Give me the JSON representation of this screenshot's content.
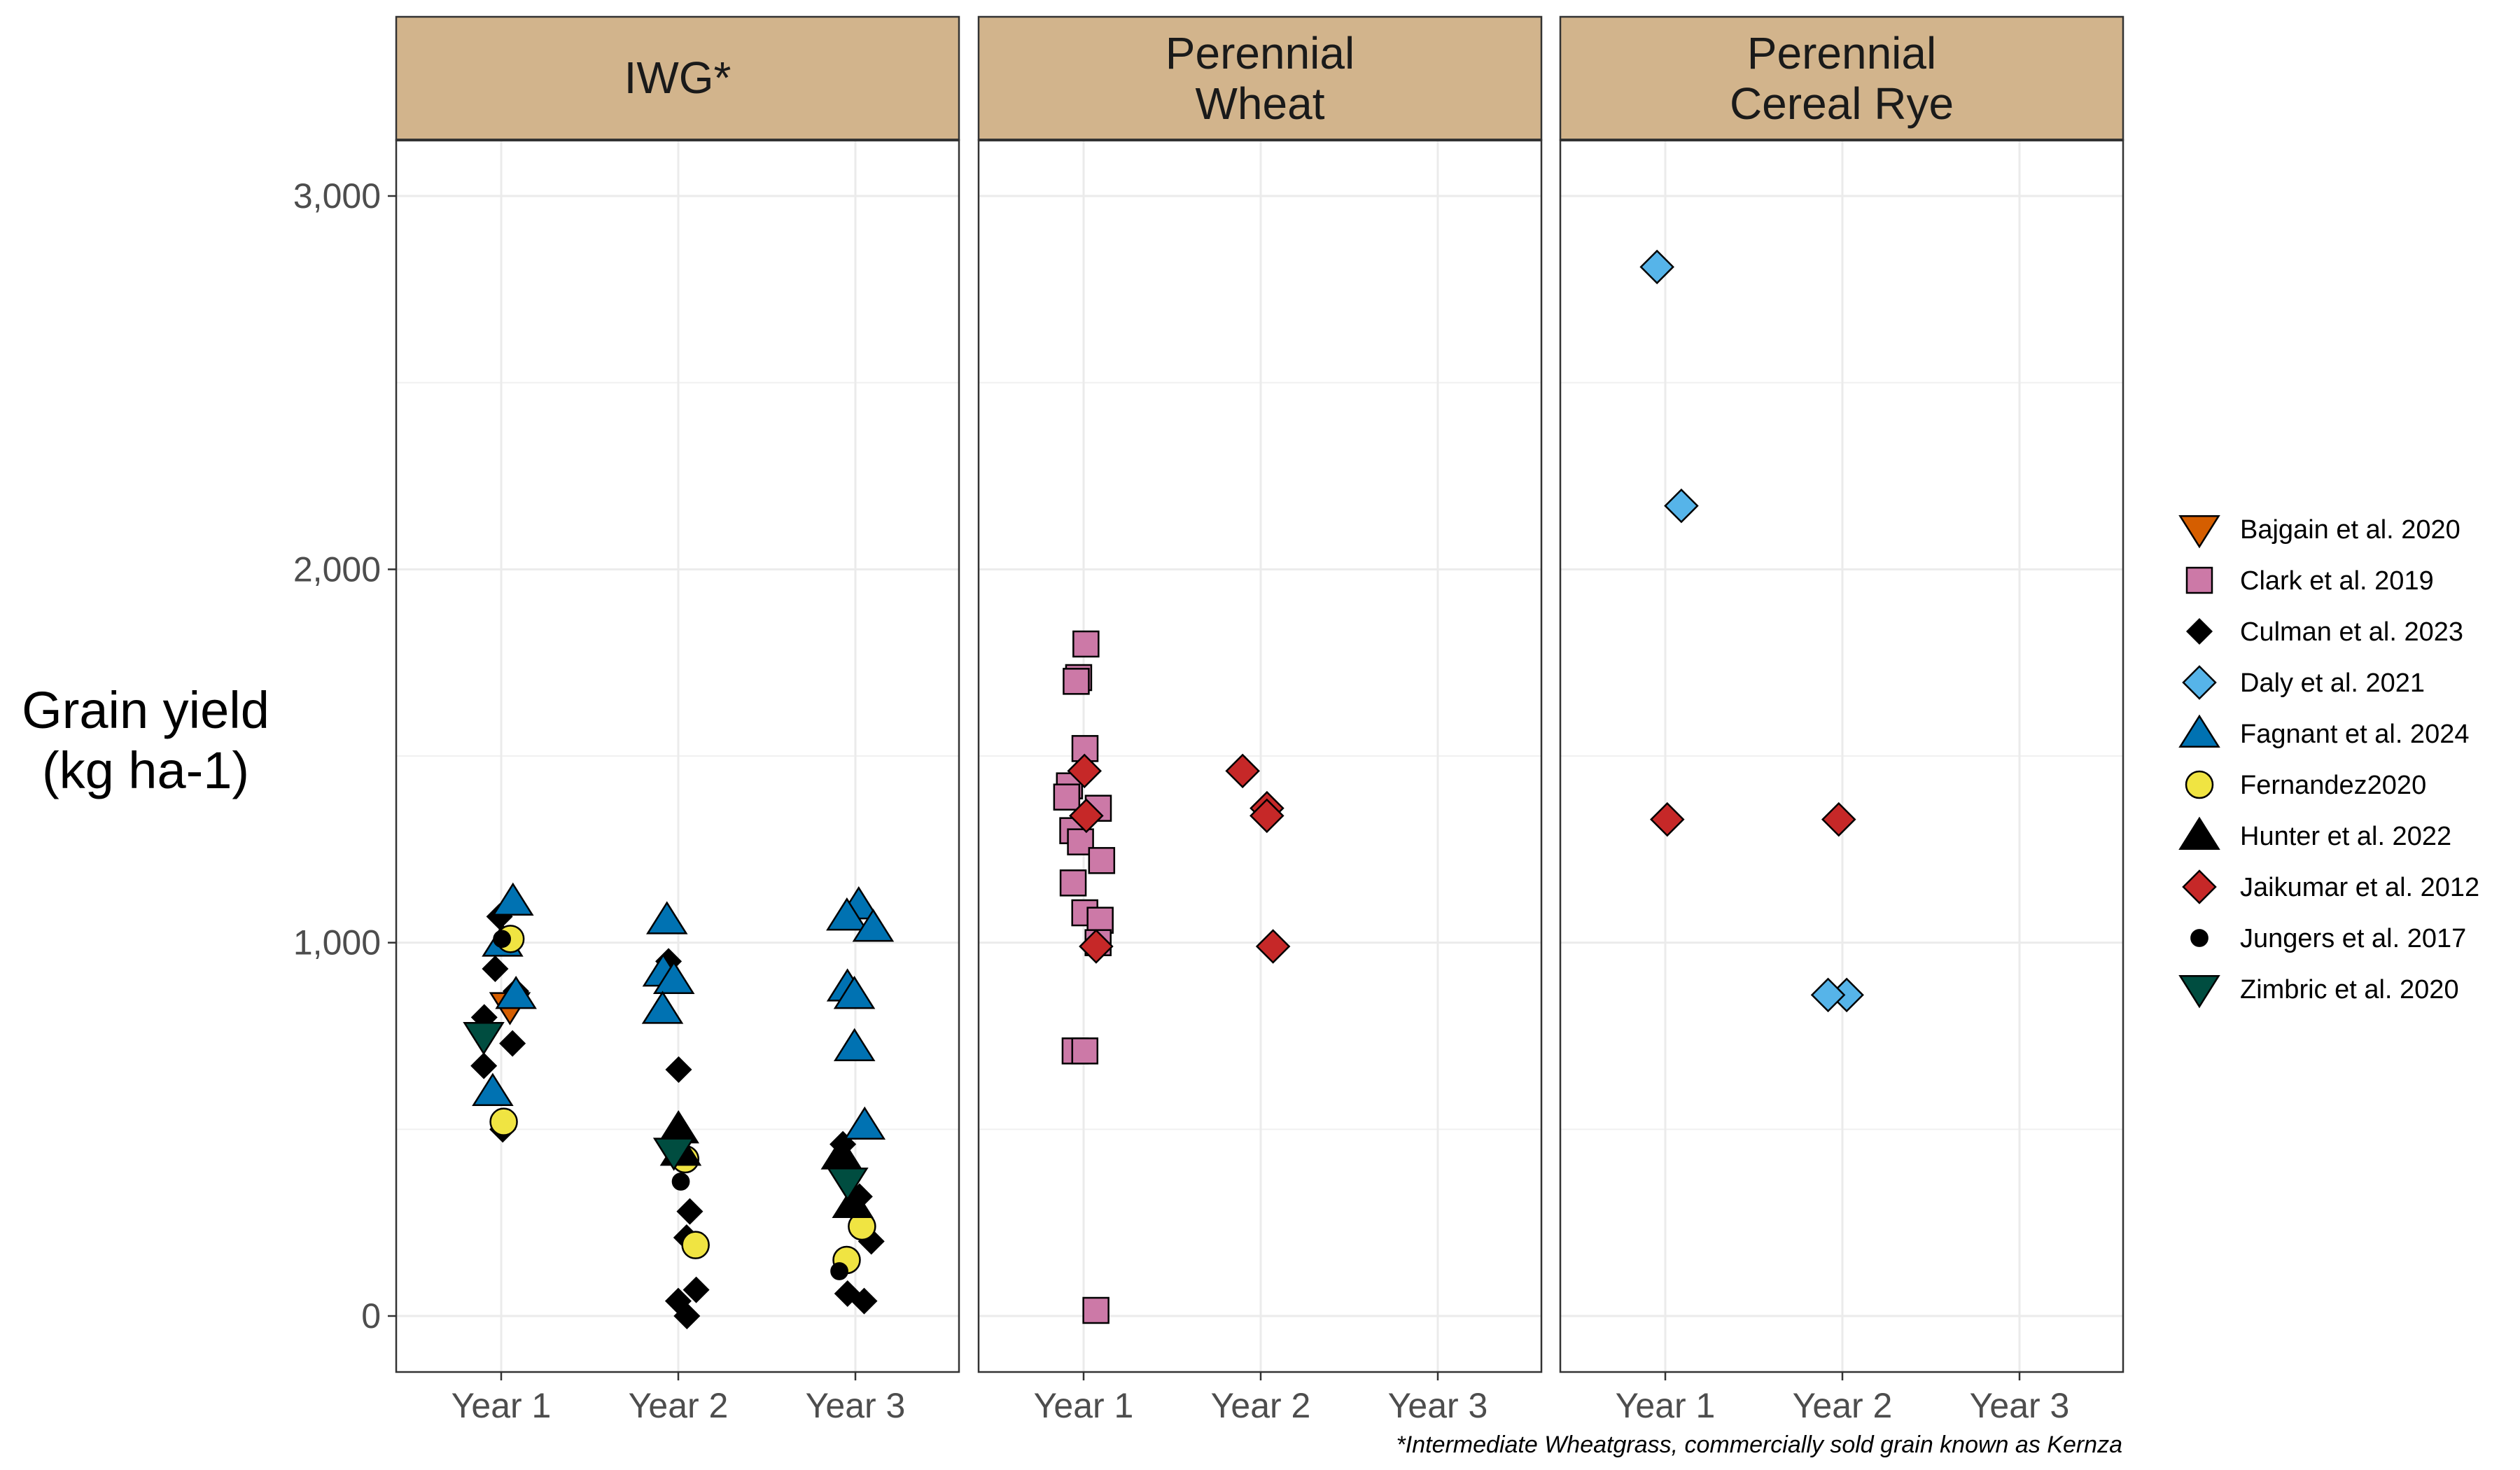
{
  "chart_data": {
    "type": "scatter",
    "ylabel_lines": [
      "Grain yield",
      "(kg ha-1)"
    ],
    "ylim": [
      -150,
      3150
    ],
    "yticks": [
      0,
      1000,
      2000,
      3000
    ],
    "ytick_labels": [
      "0",
      "1,000",
      "2,000",
      "3,000"
    ],
    "categories": [
      "Year 1",
      "Year 2",
      "Year 3"
    ],
    "grid": true,
    "legend_position": "right",
    "caption": "*Intermediate Wheatgrass, commercially sold grain known as Kernza",
    "panels": [
      {
        "lines": [
          "IWG*"
        ]
      },
      {
        "lines": [
          "Perennial",
          "Wheat"
        ]
      },
      {
        "lines": [
          "Perennial",
          "Cereal Rye"
        ]
      }
    ],
    "series": [
      {
        "name": "Bajgain et al. 2020",
        "shape": "triangle-down",
        "color": "#D55E00",
        "points": [
          {
            "panel": 0,
            "x": "Year 1",
            "y": 830
          }
        ]
      },
      {
        "name": "Clark et al. 2019",
        "shape": "square",
        "color": "#CC79A7",
        "points": [
          {
            "panel": 1,
            "x": "Year 1",
            "y": 1800
          },
          {
            "panel": 1,
            "x": "Year 1",
            "y": 1710
          },
          {
            "panel": 1,
            "x": "Year 1",
            "y": 1700
          },
          {
            "panel": 1,
            "x": "Year 1",
            "y": 1520
          },
          {
            "panel": 1,
            "x": "Year 1",
            "y": 1420
          },
          {
            "panel": 1,
            "x": "Year 1",
            "y": 1390
          },
          {
            "panel": 1,
            "x": "Year 1",
            "y": 1360
          },
          {
            "panel": 1,
            "x": "Year 1",
            "y": 1300
          },
          {
            "panel": 1,
            "x": "Year 1",
            "y": 1270
          },
          {
            "panel": 1,
            "x": "Year 1",
            "y": 1220
          },
          {
            "panel": 1,
            "x": "Year 1",
            "y": 1160
          },
          {
            "panel": 1,
            "x": "Year 1",
            "y": 1080
          },
          {
            "panel": 1,
            "x": "Year 1",
            "y": 1060
          },
          {
            "panel": 1,
            "x": "Year 1",
            "y": 1000
          },
          {
            "panel": 1,
            "x": "Year 1",
            "y": 710
          },
          {
            "panel": 1,
            "x": "Year 1",
            "y": 710
          },
          {
            "panel": 1,
            "x": "Year 1",
            "y": 15
          }
        ]
      },
      {
        "name": "Culman et al. 2023",
        "shape": "diamond",
        "color": "#000000",
        "points": [
          {
            "panel": 0,
            "x": "Year 1",
            "y": 1070
          },
          {
            "panel": 0,
            "x": "Year 1",
            "y": 930
          },
          {
            "panel": 0,
            "x": "Year 1",
            "y": 870
          },
          {
            "panel": 0,
            "x": "Year 1",
            "y": 800
          },
          {
            "panel": 0,
            "x": "Year 1",
            "y": 730
          },
          {
            "panel": 0,
            "x": "Year 1",
            "y": 670
          },
          {
            "panel": 0,
            "x": "Year 1",
            "y": 500
          },
          {
            "panel": 0,
            "x": "Year 2",
            "y": 950
          },
          {
            "panel": 0,
            "x": "Year 2",
            "y": 660
          },
          {
            "panel": 0,
            "x": "Year 2",
            "y": 280
          },
          {
            "panel": 0,
            "x": "Year 2",
            "y": 210
          },
          {
            "panel": 0,
            "x": "Year 2",
            "y": 70
          },
          {
            "panel": 0,
            "x": "Year 2",
            "y": 40
          },
          {
            "panel": 0,
            "x": "Year 2",
            "y": 0
          },
          {
            "panel": 0,
            "x": "Year 3",
            "y": 460
          },
          {
            "panel": 0,
            "x": "Year 3",
            "y": 320
          },
          {
            "panel": 0,
            "x": "Year 3",
            "y": 200
          },
          {
            "panel": 0,
            "x": "Year 3",
            "y": 60
          },
          {
            "panel": 0,
            "x": "Year 3",
            "y": 40
          }
        ]
      },
      {
        "name": "Daly et al. 2021",
        "shape": "diamond",
        "color": "#56B4E9",
        "points": [
          {
            "panel": 2,
            "x": "Year 1",
            "y": 2810
          },
          {
            "panel": 2,
            "x": "Year 1",
            "y": 2170
          },
          {
            "panel": 2,
            "x": "Year 2",
            "y": 860
          },
          {
            "panel": 2,
            "x": "Year 2",
            "y": 860
          }
        ]
      },
      {
        "name": "Fagnant et al. 2024",
        "shape": "triangle-up",
        "color": "#0072B2",
        "points": [
          {
            "panel": 0,
            "x": "Year 1",
            "y": 1110
          },
          {
            "panel": 0,
            "x": "Year 1",
            "y": 1000
          },
          {
            "panel": 0,
            "x": "Year 1",
            "y": 860
          },
          {
            "panel": 0,
            "x": "Year 1",
            "y": 600
          },
          {
            "panel": 0,
            "x": "Year 2",
            "y": 1060
          },
          {
            "panel": 0,
            "x": "Year 2",
            "y": 920
          },
          {
            "panel": 0,
            "x": "Year 2",
            "y": 900
          },
          {
            "panel": 0,
            "x": "Year 2",
            "y": 820
          },
          {
            "panel": 0,
            "x": "Year 3",
            "y": 1100
          },
          {
            "panel": 0,
            "x": "Year 3",
            "y": 1070
          },
          {
            "panel": 0,
            "x": "Year 3",
            "y": 1040
          },
          {
            "panel": 0,
            "x": "Year 3",
            "y": 880
          },
          {
            "panel": 0,
            "x": "Year 3",
            "y": 860
          },
          {
            "panel": 0,
            "x": "Year 3",
            "y": 720
          },
          {
            "panel": 0,
            "x": "Year 3",
            "y": 510
          }
        ]
      },
      {
        "name": "Fernandez2020",
        "shape": "circle",
        "color": "#F0E442",
        "points": [
          {
            "panel": 0,
            "x": "Year 1",
            "y": 1010
          },
          {
            "panel": 0,
            "x": "Year 1",
            "y": 520
          },
          {
            "panel": 0,
            "x": "Year 2",
            "y": 420
          },
          {
            "panel": 0,
            "x": "Year 2",
            "y": 190
          },
          {
            "panel": 0,
            "x": "Year 3",
            "y": 240
          },
          {
            "panel": 0,
            "x": "Year 3",
            "y": 150
          }
        ]
      },
      {
        "name": "Hunter et al. 2022",
        "shape": "triangle-up",
        "color": "#000000",
        "points": [
          {
            "panel": 0,
            "x": "Year 2",
            "y": 500
          },
          {
            "panel": 0,
            "x": "Year 2",
            "y": 440
          },
          {
            "panel": 0,
            "x": "Year 3",
            "y": 430
          },
          {
            "panel": 0,
            "x": "Year 3",
            "y": 300
          }
        ]
      },
      {
        "name": "Jaikumar et al. 2012",
        "shape": "diamond",
        "color": "#C62828",
        "points": [
          {
            "panel": 1,
            "x": "Year 1",
            "y": 1460
          },
          {
            "panel": 1,
            "x": "Year 1",
            "y": 1340
          },
          {
            "panel": 1,
            "x": "Year 1",
            "y": 990
          },
          {
            "panel": 1,
            "x": "Year 2",
            "y": 1460
          },
          {
            "panel": 1,
            "x": "Year 2",
            "y": 1360
          },
          {
            "panel": 1,
            "x": "Year 2",
            "y": 1340
          },
          {
            "panel": 1,
            "x": "Year 2",
            "y": 990
          },
          {
            "panel": 2,
            "x": "Year 1",
            "y": 1330
          },
          {
            "panel": 2,
            "x": "Year 2",
            "y": 1330
          }
        ]
      },
      {
        "name": "Jungers et al. 2017",
        "shape": "circle-small",
        "color": "#000000",
        "points": [
          {
            "panel": 0,
            "x": "Year 1",
            "y": 1010
          },
          {
            "panel": 0,
            "x": "Year 2",
            "y": 360
          },
          {
            "panel": 0,
            "x": "Year 3",
            "y": 120
          }
        ]
      },
      {
        "name": "Zimbric et al. 2020",
        "shape": "triangle-down",
        "color": "#004D40",
        "points": [
          {
            "panel": 0,
            "x": "Year 1",
            "y": 750
          },
          {
            "panel": 0,
            "x": "Year 2",
            "y": 440
          },
          {
            "panel": 0,
            "x": "Year 3",
            "y": 360
          }
        ]
      }
    ]
  }
}
